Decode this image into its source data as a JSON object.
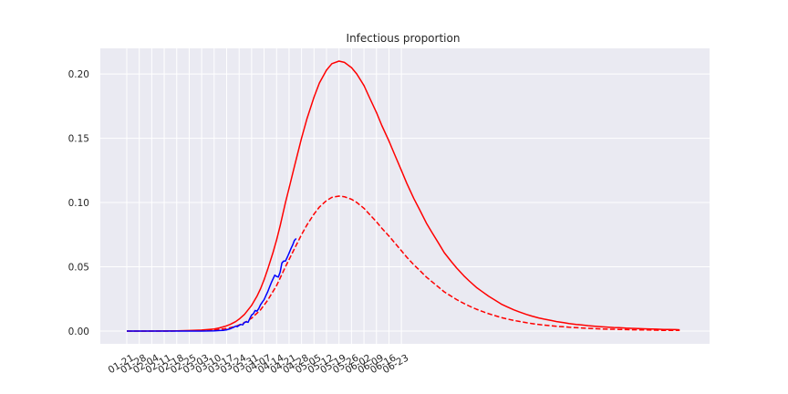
{
  "chart_data": {
    "type": "line",
    "title": "Infectious proportion",
    "xlabel": "",
    "ylabel": "",
    "xtick_labels": [
      "01-21",
      "01-28",
      "02-04",
      "02-11",
      "02-18",
      "02-25",
      "03-03",
      "03-10",
      "03-17",
      "03-24",
      "03-31",
      "04-07",
      "04-14",
      "04-21",
      "04-28",
      "05-05",
      "05-12",
      "05-19",
      "05-26",
      "06-02",
      "06-09",
      "06-16",
      "06-23"
    ],
    "ytick_labels": [
      "0.00",
      "0.05",
      "0.10",
      "0.15",
      "0.20"
    ],
    "ylim": [
      -0.01,
      0.222
    ],
    "grid": true,
    "legend": "none",
    "x_unit": "days since 01-21",
    "series": [
      {
        "style": "solid",
        "color": "#ff0000",
        "x": [
          0,
          10,
          20,
          28,
          35,
          42,
          49,
          52,
          55,
          58,
          61,
          63,
          66,
          70,
          73,
          75,
          77,
          79,
          82,
          84,
          86,
          89,
          91,
          94,
          98,
          101,
          105,
          108,
          112,
          115,
          119,
          122,
          126,
          129,
          133,
          136,
          140,
          143,
          147,
          150,
          154,
          157,
          161,
          164,
          168,
          171,
          175,
          178,
          182,
          185,
          189,
          192,
          196,
          199,
          203,
          206,
          210,
          213,
          217,
          220,
          224,
          227,
          231,
          234,
          238,
          241,
          245,
          248,
          252,
          255,
          259,
          262,
          266,
          269,
          273,
          276,
          280,
          283,
          287,
          290,
          294,
          297,
          301,
          304,
          308,
          310
        ],
        "y": [
          0,
          0,
          0.0001,
          0.0002,
          0.0004,
          0.0008,
          0.0016,
          0.0025,
          0.0036,
          0.0052,
          0.0073,
          0.0093,
          0.013,
          0.02,
          0.027,
          0.033,
          0.04,
          0.048,
          0.061,
          0.071,
          0.082,
          0.1,
          0.111,
          0.128,
          0.15,
          0.165,
          0.182,
          0.193,
          0.203,
          0.208,
          0.21,
          0.209,
          0.205,
          0.2,
          0.191,
          0.182,
          0.17,
          0.16,
          0.148,
          0.138,
          0.125,
          0.115,
          0.103,
          0.095,
          0.084,
          0.077,
          0.068,
          0.061,
          0.054,
          0.049,
          0.043,
          0.039,
          0.034,
          0.031,
          0.027,
          0.0245,
          0.021,
          0.019,
          0.0165,
          0.015,
          0.013,
          0.0117,
          0.0102,
          0.0093,
          0.0082,
          0.0074,
          0.0065,
          0.0059,
          0.0052,
          0.0048,
          0.0042,
          0.0038,
          0.0034,
          0.0031,
          0.0028,
          0.0026,
          0.0023,
          0.0021,
          0.0019,
          0.0018,
          0.0016,
          0.0015,
          0.0013,
          0.0012,
          0.0011,
          0.001
        ]
      },
      {
        "style": "dashed",
        "color": "#ff0000",
        "x": [
          0,
          10,
          20,
          28,
          35,
          42,
          49,
          55,
          61,
          66,
          70,
          75,
          79,
          84,
          89,
          94,
          98,
          101,
          105,
          108,
          112,
          115,
          119,
          122,
          126,
          129,
          133,
          136,
          140,
          143,
          147,
          150,
          154,
          157,
          161,
          164,
          168,
          171,
          175,
          178,
          182,
          185,
          189,
          192,
          196,
          199,
          203,
          206,
          210,
          213,
          217,
          220,
          224,
          227,
          231,
          234,
          238,
          241,
          245,
          248,
          252,
          255,
          259,
          262,
          266,
          269,
          273,
          276,
          280,
          283,
          287,
          290,
          294,
          297,
          301,
          304,
          308,
          310
        ],
        "y": [
          0,
          0,
          0,
          0.0001,
          0.0002,
          0.0004,
          0.0008,
          0.0018,
          0.0036,
          0.0065,
          0.01,
          0.0165,
          0.024,
          0.0355,
          0.05,
          0.064,
          0.075,
          0.0825,
          0.091,
          0.0965,
          0.1015,
          0.104,
          0.105,
          0.1045,
          0.1025,
          0.1,
          0.0955,
          0.091,
          0.085,
          0.08,
          0.074,
          0.069,
          0.0625,
          0.0575,
          0.0515,
          0.0475,
          0.042,
          0.0385,
          0.034,
          0.0305,
          0.027,
          0.0245,
          0.0215,
          0.0195,
          0.017,
          0.0155,
          0.0135,
          0.0122,
          0.0105,
          0.0095,
          0.0083,
          0.0075,
          0.0065,
          0.0059,
          0.0051,
          0.0046,
          0.0041,
          0.0037,
          0.0033,
          0.003,
          0.0026,
          0.0024,
          0.0021,
          0.0019,
          0.0017,
          0.0015,
          0.0014,
          0.0013,
          0.0011,
          0.001,
          0.0009,
          0.0009,
          0.0008,
          0.0007,
          0.0006,
          0.0006,
          0.0005,
          0.0005
        ]
      },
      {
        "style": "solid",
        "color": "#0000ff",
        "x": [
          0,
          10,
          20,
          28,
          35,
          42,
          49,
          52,
          54,
          56,
          57,
          58,
          59,
          60,
          61,
          62,
          63,
          64,
          65,
          66,
          67,
          68,
          69,
          70,
          71,
          72,
          73,
          74,
          75,
          76,
          77,
          78,
          79,
          80,
          81,
          82,
          83,
          84,
          85,
          86,
          87,
          88,
          89,
          90,
          91,
          92,
          93,
          94,
          95
        ],
        "y": [
          0,
          0,
          0,
          0,
          0,
          0,
          0.0002,
          0.0004,
          0.0006,
          0.001,
          0.0014,
          0.0018,
          0.0024,
          0.003,
          0.0038,
          0.0035,
          0.0045,
          0.0052,
          0.0048,
          0.0068,
          0.0072,
          0.0068,
          0.0098,
          0.0125,
          0.0135,
          0.016,
          0.0155,
          0.0175,
          0.0205,
          0.0225,
          0.0245,
          0.0275,
          0.0305,
          0.034,
          0.0375,
          0.0405,
          0.0435,
          0.0425,
          0.042,
          0.046,
          0.053,
          0.0545,
          0.0545,
          0.0575,
          0.0605,
          0.064,
          0.067,
          0.0705,
          0.072
        ]
      }
    ]
  }
}
